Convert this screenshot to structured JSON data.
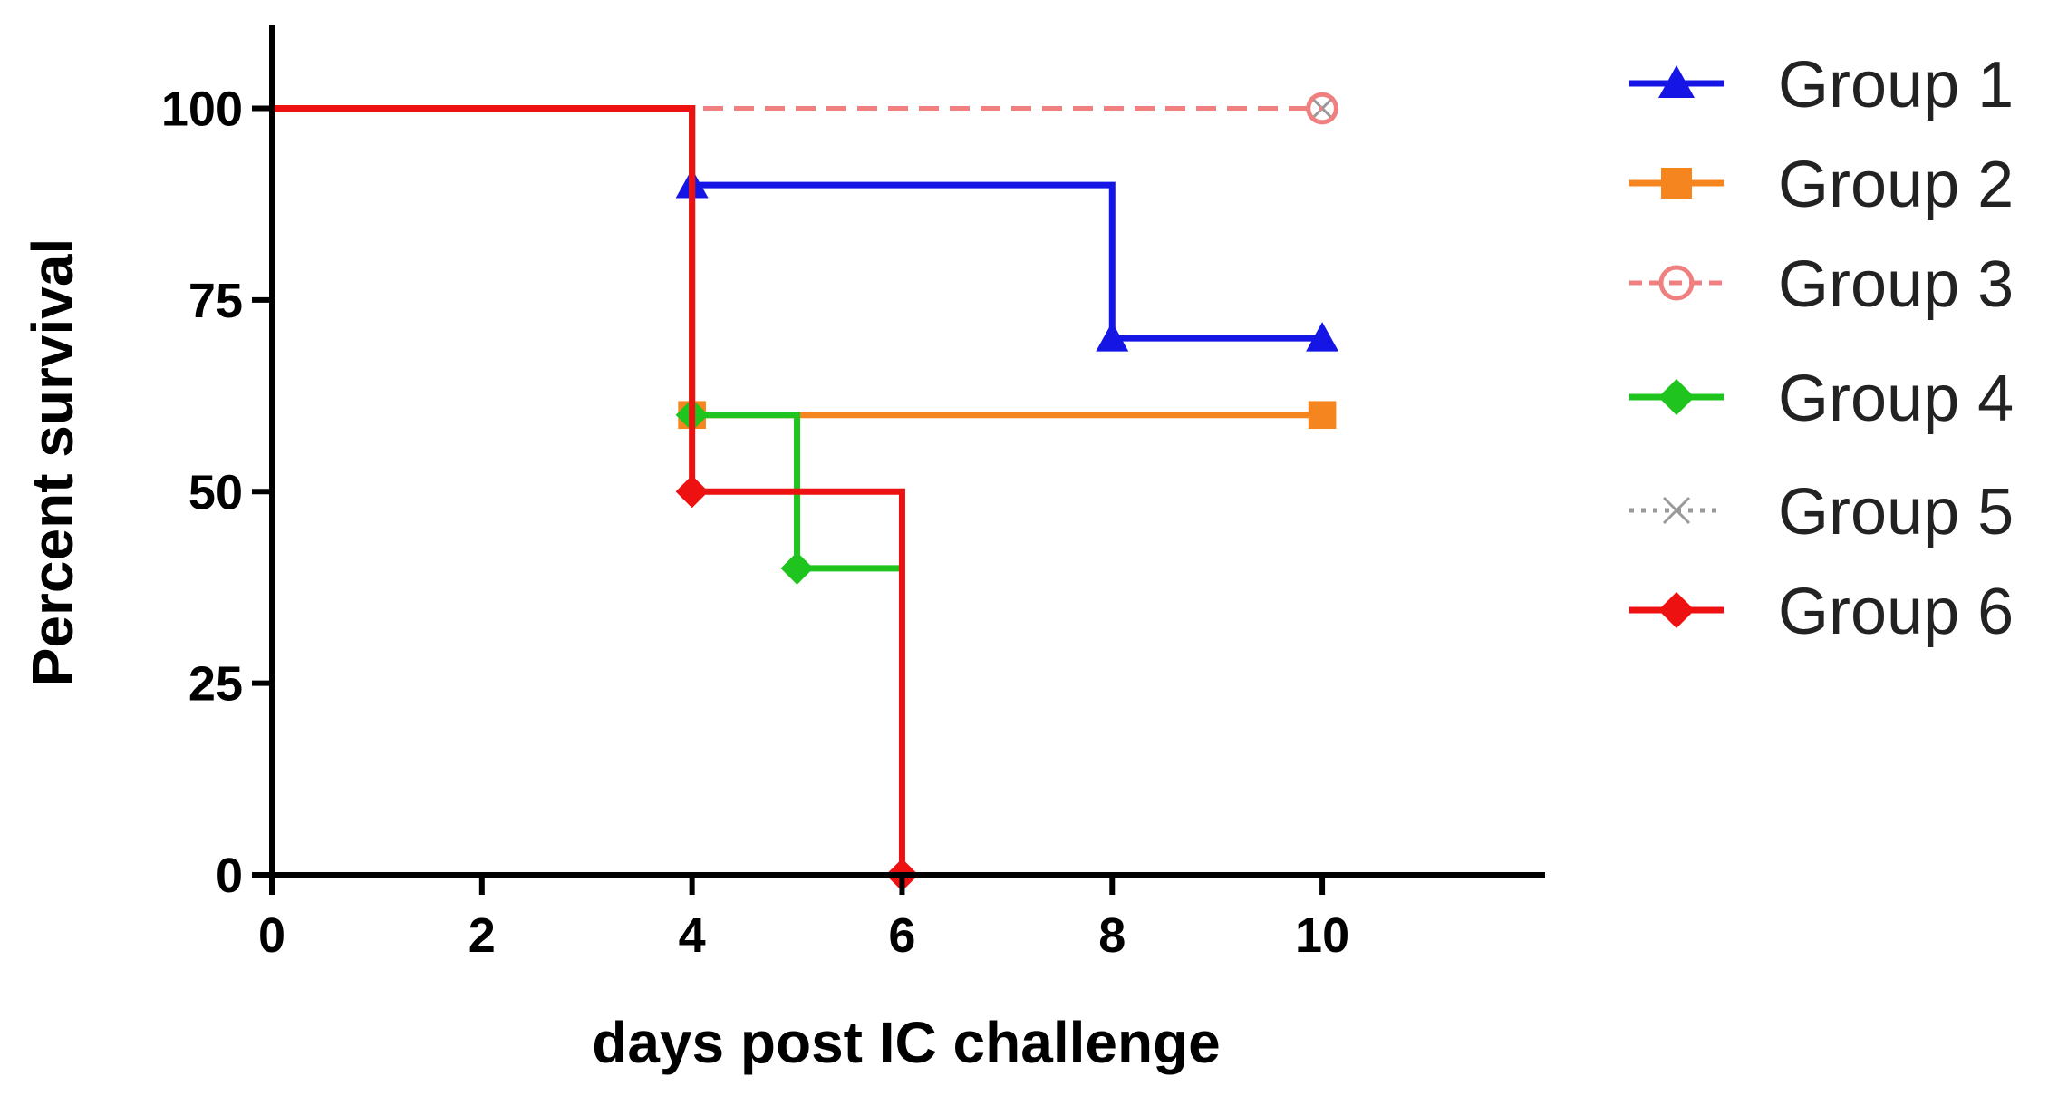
{
  "chart_data": {
    "type": "line",
    "step": true,
    "title": "",
    "xlabel": "days post IC challenge",
    "ylabel": "Percent survival",
    "xlim": [
      0,
      11
    ],
    "ylim": [
      0,
      110
    ],
    "xticks": [
      0,
      2,
      4,
      6,
      8,
      10
    ],
    "yticks": [
      0,
      25,
      50,
      75,
      100
    ],
    "grid": false,
    "legend_position": "right",
    "series": [
      {
        "name": "Group 1",
        "color": "#1515e6",
        "marker": "triangle",
        "dash": false,
        "x": [
          0,
          4,
          8,
          10
        ],
        "y": [
          100,
          90,
          70,
          70
        ],
        "markers": [
          [
            4,
            90
          ],
          [
            8,
            70
          ],
          [
            10,
            70
          ]
        ]
      },
      {
        "name": "Group 2",
        "color": "#f5861f",
        "marker": "square",
        "dash": false,
        "x": [
          0,
          4,
          10
        ],
        "y": [
          100,
          60,
          60
        ],
        "markers": [
          [
            4,
            60
          ],
          [
            10,
            60
          ]
        ]
      },
      {
        "name": "Group 3",
        "color": "#f08080",
        "marker": "circle",
        "dash": true,
        "x": [
          0,
          10
        ],
        "y": [
          100,
          100
        ],
        "markers": [
          [
            10,
            100
          ]
        ]
      },
      {
        "name": "Group 4",
        "color": "#1fc41f",
        "marker": "diamond",
        "dash": false,
        "x": [
          0,
          4,
          5,
          6
        ],
        "y": [
          100,
          60,
          40,
          40
        ],
        "markers": [
          [
            4,
            60
          ],
          [
            5,
            40
          ]
        ]
      },
      {
        "name": "Group 5",
        "color": "#999999",
        "marker": "x",
        "dash": true,
        "x": [
          0,
          10
        ],
        "y": [
          100,
          100
        ],
        "markers": [
          [
            10,
            100
          ]
        ]
      },
      {
        "name": "Group 6",
        "color": "#ee1111",
        "marker": "diamond",
        "dash": false,
        "x": [
          0,
          4,
          6
        ],
        "y": [
          100,
          50,
          0
        ],
        "markers": [
          [
            4,
            50
          ],
          [
            6,
            0
          ]
        ]
      }
    ]
  }
}
